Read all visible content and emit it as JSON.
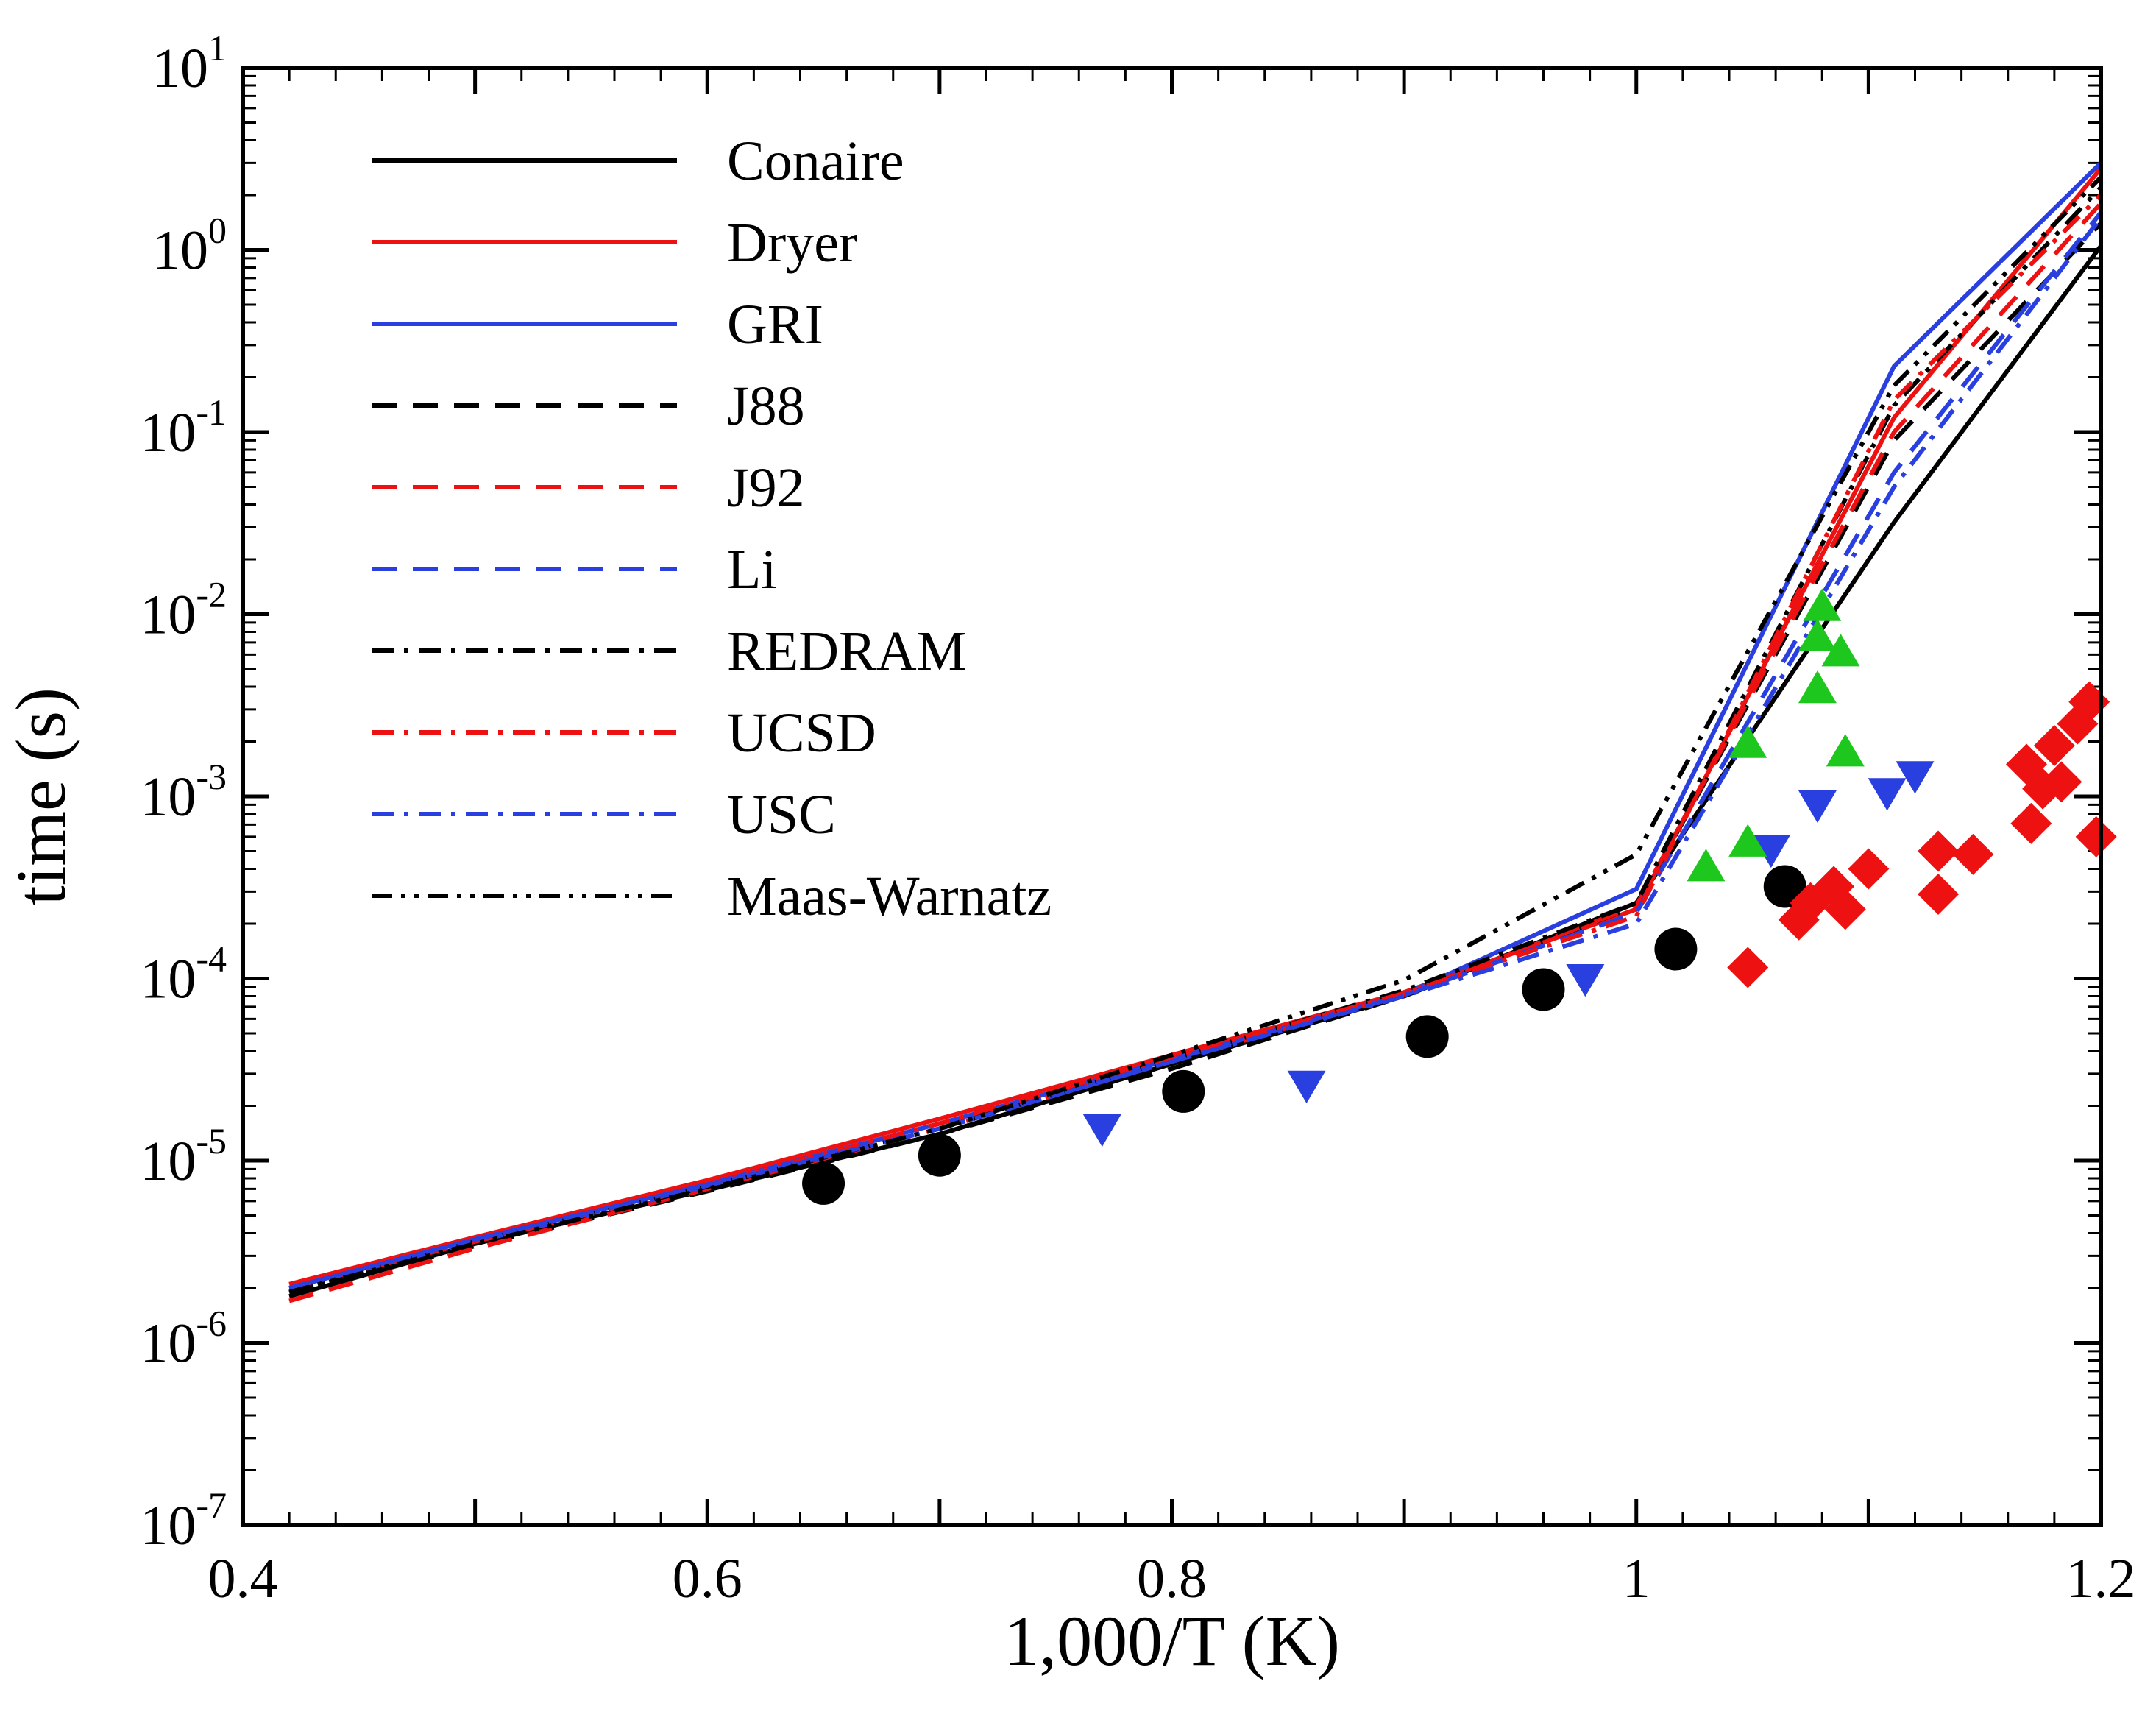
{
  "chart_data": {
    "type": "line",
    "title": "",
    "xlabel": "1,000/T (K)",
    "ylabel": "time (s)",
    "xlim": [
      0.4,
      1.2
    ],
    "ylim": [
      1e-07,
      10
    ],
    "yscale": "log",
    "grid": false,
    "legend_position": "top-left",
    "x_ticks": [
      {
        "value": 0.4,
        "label": "0.4"
      },
      {
        "value": 0.6,
        "label": "0.6"
      },
      {
        "value": 0.8,
        "label": "0.8"
      },
      {
        "value": 1.0,
        "label": "1"
      },
      {
        "value": 1.2,
        "label": "1.2"
      }
    ],
    "y_ticks": [
      {
        "value": 1e-07,
        "base": "10",
        "exp": "-7"
      },
      {
        "value": 1e-06,
        "base": "10",
        "exp": "-6"
      },
      {
        "value": 1e-05,
        "base": "10",
        "exp": "-5"
      },
      {
        "value": 0.0001,
        "base": "10",
        "exp": "-4"
      },
      {
        "value": 0.001,
        "base": "10",
        "exp": "-3"
      },
      {
        "value": 0.01,
        "base": "10",
        "exp": "-2"
      },
      {
        "value": 0.1,
        "base": "10",
        "exp": "-1"
      },
      {
        "value": 1,
        "base": "10",
        "exp": "0"
      },
      {
        "value": 10,
        "base": "10",
        "exp": "1"
      }
    ],
    "series": [
      {
        "name": "Conaire",
        "color": "#000000",
        "dash": "solid",
        "x": [
          0.42,
          0.5,
          0.6,
          0.7,
          0.8,
          0.9,
          1.0,
          1.111,
          1.2
        ],
        "y": [
          1.8e-06,
          3.5e-06,
          6.9e-06,
          1.4e-05,
          3.4e-05,
          8e-05,
          0.00026,
          0.032,
          1.05
        ]
      },
      {
        "name": "Dryer",
        "color": "#ee1111",
        "dash": "solid",
        "x": [
          0.42,
          0.5,
          0.6,
          0.7,
          0.8,
          0.9,
          1.0,
          1.111,
          1.2
        ],
        "y": [
          2.1e-06,
          3.8e-06,
          7.8e-06,
          1.7e-05,
          3.8e-05,
          8.4e-05,
          0.00024,
          0.12,
          2.8
        ]
      },
      {
        "name": "GRI",
        "color": "#2a3fe0",
        "dash": "solid",
        "x": [
          0.42,
          0.5,
          0.6,
          0.7,
          0.8,
          0.9,
          1.0,
          1.111,
          1.2
        ],
        "y": [
          2e-06,
          3.7e-06,
          7.4e-06,
          1.6e-05,
          3.6e-05,
          8.2e-05,
          0.00031,
          0.23,
          3.0
        ]
      },
      {
        "name": "J88",
        "color": "#000000",
        "dash": "dashed",
        "x": [
          0.42,
          0.5,
          0.6,
          0.7,
          0.8,
          0.9,
          1.0,
          1.111,
          1.2
        ],
        "y": [
          1.9e-06,
          3.4e-06,
          6.8e-06,
          1.4e-05,
          3.2e-05,
          8e-05,
          0.00025,
          0.09,
          1.4
        ]
      },
      {
        "name": "J92",
        "color": "#ee1111",
        "dash": "dashed",
        "x": [
          0.42,
          0.5,
          0.6,
          0.7,
          0.8,
          0.9,
          1.0,
          1.111,
          1.2
        ],
        "y": [
          1.7e-06,
          3.3e-06,
          7e-06,
          1.5e-05,
          3.5e-05,
          8.2e-05,
          0.00025,
          0.1,
          1.8
        ]
      },
      {
        "name": "Li",
        "color": "#2a3fe0",
        "dash": "dashed",
        "x": [
          0.42,
          0.5,
          0.6,
          0.7,
          0.8,
          0.9,
          1.0,
          1.111,
          1.2
        ],
        "y": [
          2e-06,
          3.6e-06,
          7.2e-06,
          1.5e-05,
          3.5e-05,
          8.1e-05,
          0.00023,
          0.06,
          1.6
        ]
      },
      {
        "name": "REDRAM",
        "color": "#000000",
        "dash": "dashdot",
        "x": [
          0.42,
          0.5,
          0.6,
          0.7,
          0.8,
          0.9,
          1.0,
          1.111,
          1.2
        ],
        "y": [
          1.9e-06,
          3.6e-06,
          7.2e-06,
          1.5e-05,
          3.6e-05,
          8.6e-05,
          0.00026,
          0.14,
          2.2
        ]
      },
      {
        "name": "UCSD",
        "color": "#ee1111",
        "dash": "dashdot",
        "x": [
          0.42,
          0.5,
          0.6,
          0.7,
          0.8,
          0.9,
          1.0,
          1.111,
          1.2
        ],
        "y": [
          2e-06,
          3.6e-06,
          7.3e-06,
          1.6e-05,
          3.7e-05,
          8.3e-05,
          0.00022,
          0.15,
          2.0
        ]
      },
      {
        "name": "USC",
        "color": "#2a3fe0",
        "dash": "dashdot",
        "x": [
          0.42,
          0.5,
          0.6,
          0.7,
          0.8,
          0.9,
          1.0,
          1.111,
          1.2
        ],
        "y": [
          2e-06,
          3.7e-06,
          7.3e-06,
          1.5e-05,
          3.5e-05,
          8e-05,
          0.0002,
          0.05,
          1.5
        ]
      },
      {
        "name": "Maas-Warnatz",
        "color": "#000000",
        "dash": "dashdotdot",
        "x": [
          0.42,
          0.5,
          0.6,
          0.7,
          0.8,
          0.9,
          1.0,
          1.111,
          1.2
        ],
        "y": [
          1.9e-06,
          3.5e-06,
          7e-06,
          1.5e-05,
          3.8e-05,
          9.8e-05,
          0.00048,
          0.18,
          2.5
        ]
      }
    ],
    "markers": [
      {
        "shape": "circle",
        "color": "#000000",
        "points": [
          [
            0.65,
            7.5e-06
          ],
          [
            0.7,
            1.07e-05
          ],
          [
            0.805,
            2.4e-05
          ],
          [
            0.91,
            4.8e-05
          ],
          [
            0.96,
            8.7e-05
          ],
          [
            1.017,
            0.000145
          ],
          [
            1.064,
            0.00032
          ]
        ]
      },
      {
        "shape": "triangle-down",
        "color": "#2a3fe0",
        "points": [
          [
            0.77,
            1.5e-05
          ],
          [
            0.858,
            2.6e-05
          ],
          [
            0.978,
            0.0001
          ],
          [
            1.058,
            0.00051
          ],
          [
            1.078,
            0.0009
          ],
          [
            1.108,
            0.00105
          ],
          [
            1.12,
            0.0013
          ]
        ]
      },
      {
        "shape": "triangle-up",
        "color": "#1ec71e",
        "points": [
          [
            1.03,
            0.00041
          ],
          [
            1.048,
            0.00056
          ],
          [
            1.048,
            0.00195
          ],
          [
            1.078,
            0.0039
          ],
          [
            1.078,
            0.0075
          ],
          [
            1.08,
            0.011
          ],
          [
            1.088,
            0.0062
          ],
          [
            1.09,
            0.00175
          ]
        ]
      },
      {
        "shape": "diamond",
        "color": "#ee1111",
        "points": [
          [
            1.048,
            0.000115
          ],
          [
            1.07,
            0.00021
          ],
          [
            1.075,
            0.00026
          ],
          [
            1.085,
            0.00032
          ],
          [
            1.09,
            0.00024
          ],
          [
            1.1,
            0.0004
          ],
          [
            1.13,
            0.0005
          ],
          [
            1.13,
            0.00029
          ],
          [
            1.145,
            0.00048
          ],
          [
            1.168,
            0.0015
          ],
          [
            1.17,
            0.00071
          ],
          [
            1.175,
            0.0011
          ],
          [
            1.18,
            0.0019
          ],
          [
            1.183,
            0.0012
          ],
          [
            1.19,
            0.0025
          ],
          [
            1.195,
            0.0033
          ],
          [
            1.198,
            0.0006
          ]
        ]
      }
    ]
  }
}
